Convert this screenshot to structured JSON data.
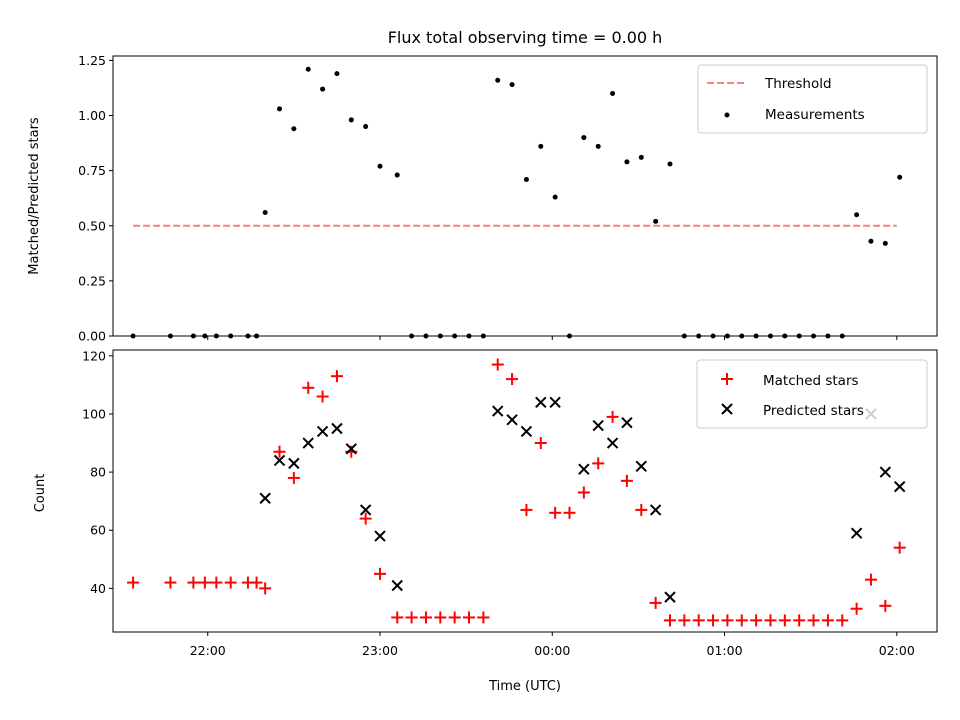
{
  "chart_data": {
    "type": "scatter",
    "title": "Flux total observing time = 0.00 h",
    "xlabel": "Time (UTC)",
    "xlim": [
      "21:27",
      "02:14"
    ],
    "xticks": [
      "22:00",
      "23:00",
      "00:00",
      "01:00",
      "02:00"
    ],
    "panels": [
      {
        "ylabel": "Matched/Predicted stars",
        "ylim": [
          0,
          1.27
        ],
        "yticks": [
          "0.00",
          "0.25",
          "0.50",
          "0.75",
          "1.00",
          "1.25"
        ],
        "legend_position": "upper right",
        "threshold": {
          "name": "Threshold",
          "value": 0.5,
          "color": "#ff7f7f",
          "style": "dashed",
          "x_range": [
            "21:34",
            "02:00"
          ]
        },
        "series": [
          {
            "name": "Measurements",
            "marker": "dot",
            "color": "#000000",
            "points": [
              [
                "21:34",
                0
              ],
              [
                "21:47",
                0
              ],
              [
                "21:55",
                0
              ],
              [
                "21:59",
                0
              ],
              [
                "22:03",
                0
              ],
              [
                "22:08",
                0
              ],
              [
                "22:14",
                0
              ],
              [
                "22:17",
                0
              ],
              [
                "22:20",
                0.56
              ],
              [
                "22:25",
                1.03
              ],
              [
                "22:30",
                0.94
              ],
              [
                "22:35",
                1.21
              ],
              [
                "22:40",
                1.12
              ],
              [
                "22:45",
                1.19
              ],
              [
                "22:50",
                0.98
              ],
              [
                "22:55",
                0.95
              ],
              [
                "23:00",
                0.77
              ],
              [
                "23:06",
                0.73
              ],
              [
                "23:11",
                0
              ],
              [
                "23:16",
                0
              ],
              [
                "23:21",
                0
              ],
              [
                "23:26",
                0
              ],
              [
                "23:31",
                0
              ],
              [
                "23:36",
                0
              ],
              [
                "23:41",
                1.16
              ],
              [
                "23:46",
                1.14
              ],
              [
                "23:51",
                0.71
              ],
              [
                "23:56",
                0.86
              ],
              [
                "00:01",
                0.63
              ],
              [
                "00:06",
                0
              ],
              [
                "00:11",
                0.9
              ],
              [
                "00:16",
                0.86
              ],
              [
                "00:21",
                1.1
              ],
              [
                "00:26",
                0.79
              ],
              [
                "00:31",
                0.81
              ],
              [
                "00:36",
                0.52
              ],
              [
                "00:41",
                0.78
              ],
              [
                "00:46",
                0
              ],
              [
                "00:51",
                0
              ],
              [
                "00:56",
                0
              ],
              [
                "01:01",
                0
              ],
              [
                "01:06",
                0
              ],
              [
                "01:11",
                0
              ],
              [
                "01:16",
                0
              ],
              [
                "01:21",
                0
              ],
              [
                "01:26",
                0
              ],
              [
                "01:31",
                0
              ],
              [
                "01:36",
                0
              ],
              [
                "01:41",
                0
              ],
              [
                "01:46",
                0.55
              ],
              [
                "01:51",
                0.43
              ],
              [
                "01:56",
                0.42
              ],
              [
                "02:01",
                0.72
              ]
            ]
          }
        ]
      },
      {
        "ylabel": "Count",
        "ylim": [
          25,
          122
        ],
        "yticks": [
          "40",
          "60",
          "80",
          "100",
          "120"
        ],
        "legend_position": "upper right",
        "series": [
          {
            "name": "Matched stars",
            "marker": "plus",
            "color": "#ff0000",
            "points": [
              [
                "21:34",
                42
              ],
              [
                "21:47",
                42
              ],
              [
                "21:55",
                42
              ],
              [
                "21:59",
                42
              ],
              [
                "22:03",
                42
              ],
              [
                "22:08",
                42
              ],
              [
                "22:14",
                42
              ],
              [
                "22:17",
                42
              ],
              [
                "22:20",
                40
              ],
              [
                "22:25",
                87
              ],
              [
                "22:30",
                78
              ],
              [
                "22:35",
                109
              ],
              [
                "22:40",
                106
              ],
              [
                "22:45",
                113
              ],
              [
                "22:50",
                87
              ],
              [
                "22:55",
                64
              ],
              [
                "23:00",
                45
              ],
              [
                "23:06",
                30
              ],
              [
                "23:11",
                30
              ],
              [
                "23:16",
                30
              ],
              [
                "23:21",
                30
              ],
              [
                "23:26",
                30
              ],
              [
                "23:31",
                30
              ],
              [
                "23:36",
                30
              ],
              [
                "23:41",
                117
              ],
              [
                "23:46",
                112
              ],
              [
                "23:51",
                67
              ],
              [
                "23:56",
                90
              ],
              [
                "00:01",
                66
              ],
              [
                "00:06",
                66
              ],
              [
                "00:11",
                73
              ],
              [
                "00:16",
                83
              ],
              [
                "00:21",
                99
              ],
              [
                "00:26",
                77
              ],
              [
                "00:31",
                67
              ],
              [
                "00:36",
                35
              ],
              [
                "00:41",
                29
              ],
              [
                "00:46",
                29
              ],
              [
                "00:51",
                29
              ],
              [
                "00:56",
                29
              ],
              [
                "01:01",
                29
              ],
              [
                "01:06",
                29
              ],
              [
                "01:11",
                29
              ],
              [
                "01:16",
                29
              ],
              [
                "01:21",
                29
              ],
              [
                "01:26",
                29
              ],
              [
                "01:31",
                29
              ],
              [
                "01:36",
                29
              ],
              [
                "01:41",
                29
              ],
              [
                "01:46",
                33
              ],
              [
                "01:51",
                43
              ],
              [
                "01:56",
                34
              ],
              [
                "02:01",
                54
              ]
            ]
          },
          {
            "name": "Predicted stars",
            "marker": "x",
            "color": "#000000",
            "points": [
              [
                "22:20",
                71
              ],
              [
                "22:25",
                84
              ],
              [
                "22:30",
                83
              ],
              [
                "22:35",
                90
              ],
              [
                "22:40",
                94
              ],
              [
                "22:45",
                95
              ],
              [
                "22:50",
                88
              ],
              [
                "22:55",
                67
              ],
              [
                "23:00",
                58
              ],
              [
                "23:06",
                41
              ],
              [
                "23:41",
                101
              ],
              [
                "23:46",
                98
              ],
              [
                "23:51",
                94
              ],
              [
                "23:56",
                104
              ],
              [
                "00:01",
                104
              ],
              [
                "00:11",
                81
              ],
              [
                "00:16",
                96
              ],
              [
                "00:21",
                90
              ],
              [
                "00:26",
                97
              ],
              [
                "00:31",
                82
              ],
              [
                "00:36",
                67
              ],
              [
                "00:41",
                37
              ],
              [
                "01:46",
                59
              ],
              [
                "01:51",
                100
              ],
              [
                "01:56",
                80
              ],
              [
                "02:01",
                75
              ]
            ]
          }
        ]
      }
    ]
  }
}
